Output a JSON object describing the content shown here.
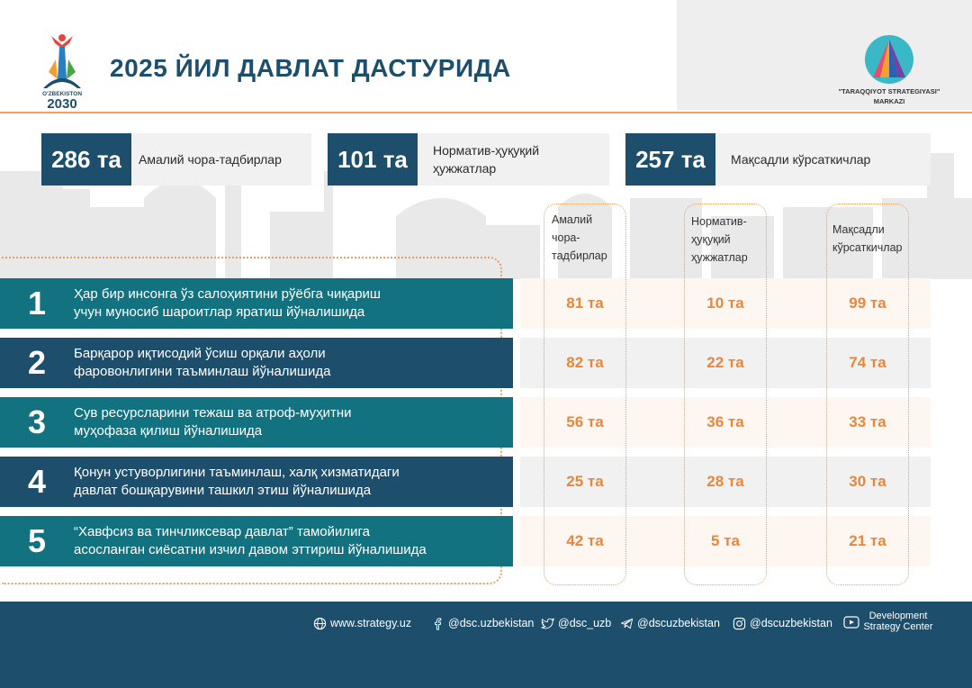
{
  "header": {
    "title": "2025 ЙИЛ ДАВЛАТ ДАСТУРИДА",
    "logo_text": "O'ZBEKISTON 2030",
    "dsc_name": "\"TARAQQIYOT STRATEGIYASI\" MARKAZI"
  },
  "stats": [
    {
      "num": "286 та",
      "label": "Амалий чора-тадбирлар"
    },
    {
      "num": "101 та",
      "label": "Норматив-ҳуқуқий ҳужжатлар"
    },
    {
      "num": "257 та",
      "label": "Мақсадли кўрсаткичлар"
    }
  ],
  "columns": [
    {
      "label": "Амалий чора-тадбирлар"
    },
    {
      "label": "Норматив-ҳуқуқий ҳужжатлар"
    },
    {
      "label": "Мақсадли кўрсаткичлар"
    }
  ],
  "rows": [
    {
      "num": "1",
      "line1": "Ҳар бир инсонга ўз салоҳиятини рўёбга чиқариш",
      "line2": "учун муносиб шароитлар яратиш йўналишида",
      "c1": "81 та",
      "c2": "10 та",
      "c3": "99 та"
    },
    {
      "num": "2",
      "line1": "Барқарор иқтисодий ўсиш орқали аҳоли",
      "line2": "фаровонлигини таъминлаш йўналишида",
      "c1": "82 та",
      "c2": "22 та",
      "c3": "74 та"
    },
    {
      "num": "3",
      "line1": "Сув ресурсларини тежаш ва атроф-муҳитни",
      "line2": "муҳофаза қилиш йўналишида",
      "c1": "56 та",
      "c2": "36 та",
      "c3": "33 та"
    },
    {
      "num": "4",
      "line1": "Қонун устуворлигини таъминлаш, халқ хизматидаги",
      "line2": "давлат бошқарувини ташкил этиш йўналишида",
      "c1": "25 та",
      "c2": "28 та",
      "c3": "30 та"
    },
    {
      "num": "5",
      "line1": "“Хавфсиз ва тинчликсевар давлат” тамойилига",
      "line2": "асосланган сиёсатни изчил давом эттириш йўналишида",
      "c1": "42 та",
      "c2": "5 та",
      "c3": "21 та"
    }
  ],
  "footer": {
    "website": "www.strategy.uz",
    "facebook": "@dsc.uzbekistan",
    "twitter": "@dsc_uzb",
    "telegram": "@dscuzbekistan",
    "instagram": "@dscuzbekistan",
    "youtube_line1": "Development",
    "youtube_line2": "Strategy Center"
  },
  "colors": {
    "navy": "#1d4e6b",
    "teal": "#12727f",
    "orange": "#e8873a"
  }
}
